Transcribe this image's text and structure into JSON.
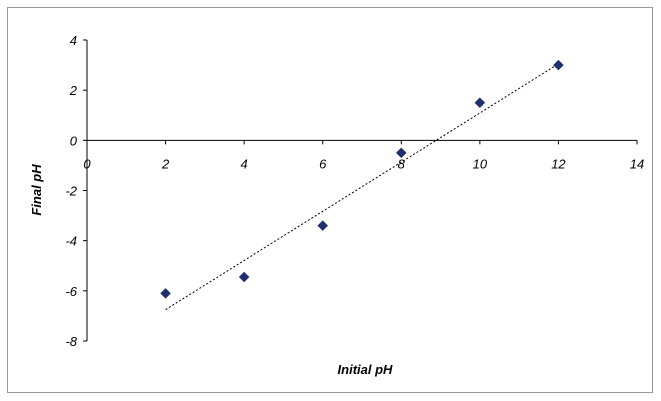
{
  "chart_data": {
    "type": "scatter",
    "xlabel": "Initial pH",
    "ylabel": "Final pH",
    "xlim": [
      0,
      14
    ],
    "ylim": [
      -8,
      4
    ],
    "x_ticks": [
      0,
      2,
      4,
      6,
      8,
      10,
      12,
      14
    ],
    "y_ticks": [
      4,
      2,
      0,
      -2,
      -4,
      -6,
      -8
    ],
    "grid": false,
    "legend": "none",
    "series": [
      {
        "points": [
          {
            "x": 2,
            "y": -6.1
          },
          {
            "x": 4,
            "y": -5.45
          },
          {
            "x": 6,
            "y": -3.4
          },
          {
            "x": 8,
            "y": -0.5
          },
          {
            "x": 10,
            "y": 1.5
          },
          {
            "x": 12,
            "y": 3.0
          }
        ],
        "color": "#1f2f6e",
        "marker": "diamond"
      }
    ],
    "trendline": {
      "style": "dotted",
      "color": "#000000",
      "from": {
        "x": 2,
        "y": -6.75
      },
      "to": {
        "x": 12,
        "y": 3.05
      }
    }
  }
}
